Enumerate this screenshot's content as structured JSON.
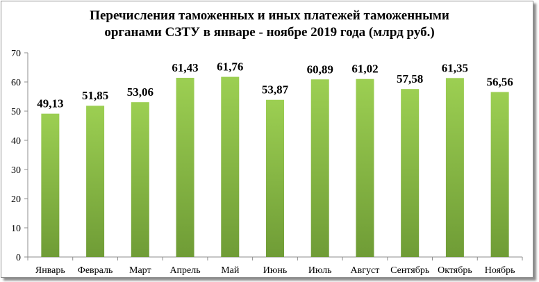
{
  "chart_data": {
    "type": "bar",
    "title_lines": [
      "Перечисления таможенных и иных платежей таможенными",
      "органами СЗТУ в январе - ноябре 2019 года (млрд руб.)"
    ],
    "categories": [
      "Январь",
      "Февраль",
      "Март",
      "Апрель",
      "Май",
      "Июнь",
      "Июль",
      "Август",
      "Сентябрь",
      "Октябрь",
      "Ноябрь"
    ],
    "values": [
      49.13,
      51.85,
      53.06,
      61.43,
      61.76,
      53.87,
      60.89,
      61.02,
      57.58,
      61.35,
      56.56
    ],
    "data_labels": [
      "49,13",
      "51,85",
      "53,06",
      "61,43",
      "61,76",
      "53,87",
      "60,89",
      "61,02",
      "57,58",
      "61,35",
      "56,56"
    ],
    "y_ticks": [
      "0",
      "10",
      "20",
      "30",
      "40",
      "50",
      "60",
      "70"
    ],
    "ylim": [
      0,
      70
    ],
    "grid": false,
    "legend": "none",
    "colors": {
      "bar_top": "#9ccf52",
      "bar_bottom": "#6f9c36",
      "axis": "#8c8c8c"
    }
  }
}
